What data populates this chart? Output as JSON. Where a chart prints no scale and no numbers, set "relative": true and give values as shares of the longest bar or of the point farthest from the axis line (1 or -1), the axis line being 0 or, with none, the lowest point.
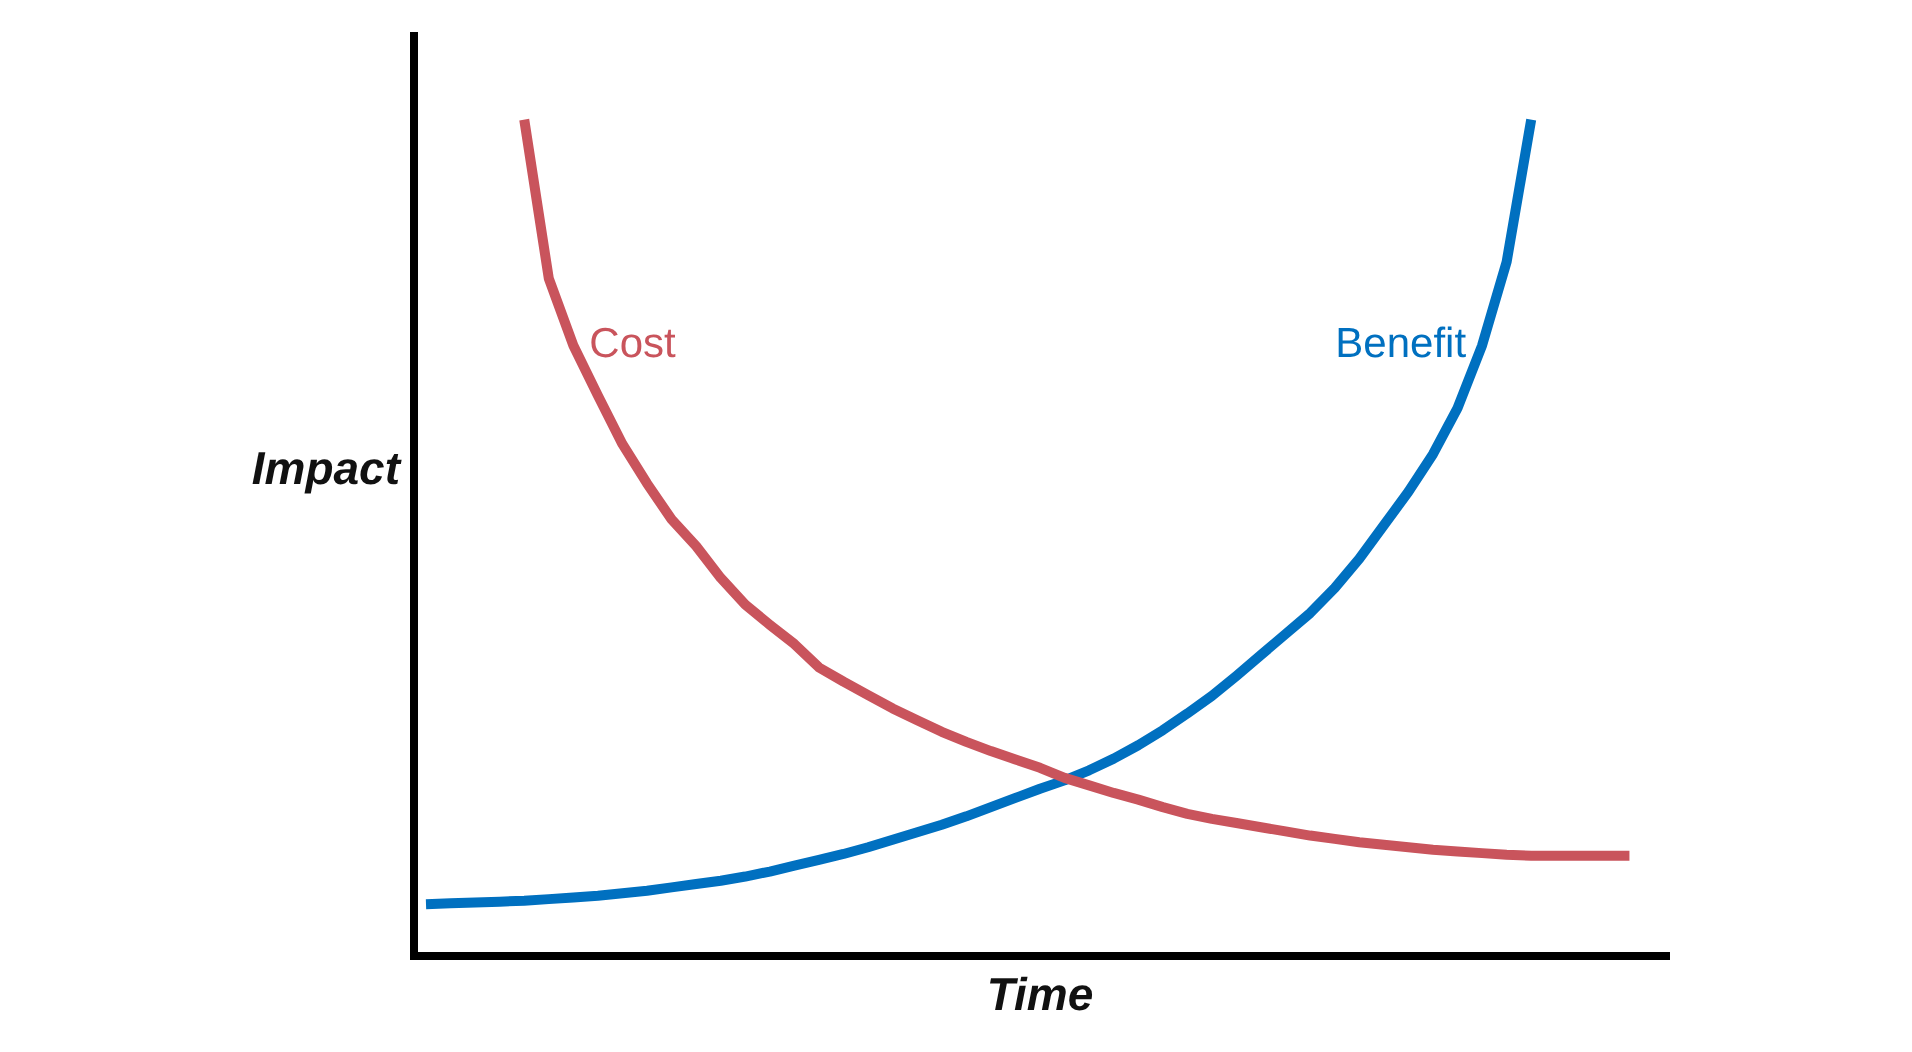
{
  "chart_data": {
    "type": "line",
    "relative": true,
    "xlabel": "Time",
    "ylabel": "Impact",
    "legend": false,
    "marker": "none",
    "line_style": "solid",
    "categories": [
      null,
      null,
      null,
      null,
      null,
      null,
      null,
      null,
      null,
      null,
      null,
      null,
      null,
      null,
      null,
      null,
      null,
      null,
      null,
      null,
      null,
      null,
      null,
      null,
      null,
      null,
      null,
      null,
      null,
      null,
      null,
      null,
      null,
      null,
      null,
      null,
      null,
      null,
      null,
      null,
      null,
      null,
      null,
      null,
      null,
      null,
      null,
      null,
      null,
      null,
      null
    ],
    "series": [
      {
        "name": "Cost",
        "color": "#c9545c",
        "values": [
          null,
          null,
          null,
          null,
          1.0,
          0.81,
          0.73,
          0.67,
          0.612,
          0.565,
          0.522,
          0.49,
          0.452,
          0.42,
          0.396,
          0.373,
          0.345,
          0.328,
          0.312,
          0.296,
          0.282,
          0.268,
          0.256,
          0.245,
          0.235,
          0.225,
          0.213,
          0.204,
          0.195,
          0.187,
          0.178,
          0.17,
          0.164,
          0.159,
          0.154,
          0.149,
          0.144,
          0.14,
          0.136,
          0.133,
          0.13,
          0.127,
          0.125,
          0.123,
          0.121,
          0.12,
          0.12,
          0.12,
          0.12,
          0.12,
          null
        ]
      },
      {
        "name": "Benefit",
        "color": "#0070c0",
        "values": [
          0.062,
          0.063,
          0.064,
          0.065,
          0.066,
          0.068,
          0.07,
          0.072,
          0.075,
          0.078,
          0.082,
          0.086,
          0.09,
          0.095,
          0.101,
          0.108,
          0.115,
          0.122,
          0.13,
          0.139,
          0.148,
          0.157,
          0.167,
          0.178,
          0.189,
          0.2,
          0.21,
          0.222,
          0.236,
          0.252,
          0.27,
          0.29,
          0.311,
          0.335,
          0.36,
          0.385,
          0.41,
          0.44,
          0.475,
          0.515,
          0.555,
          0.6,
          0.655,
          0.73,
          0.83,
          1.0,
          null,
          null,
          null,
          null,
          null
        ]
      }
    ]
  }
}
